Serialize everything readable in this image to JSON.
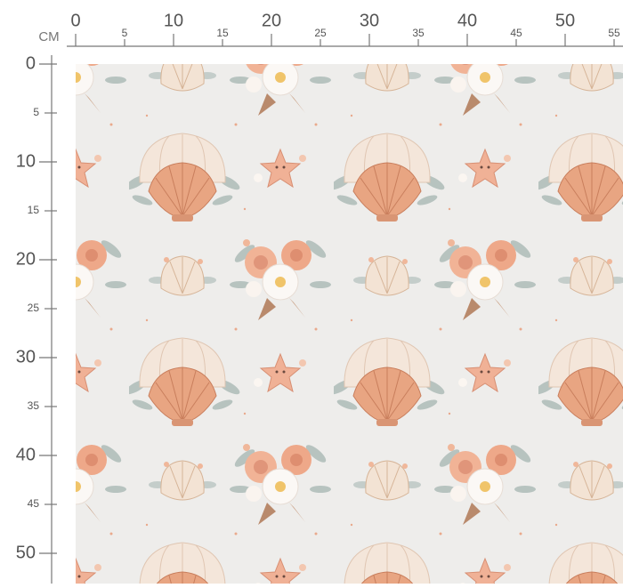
{
  "ruler": {
    "unit": "CM",
    "top_ticks": [
      0,
      5,
      10,
      15,
      20,
      25,
      30,
      35,
      40,
      45,
      50,
      55
    ],
    "left_ticks": [
      0,
      5,
      10,
      15,
      20,
      25,
      30,
      35,
      40,
      45,
      50
    ]
  }
}
